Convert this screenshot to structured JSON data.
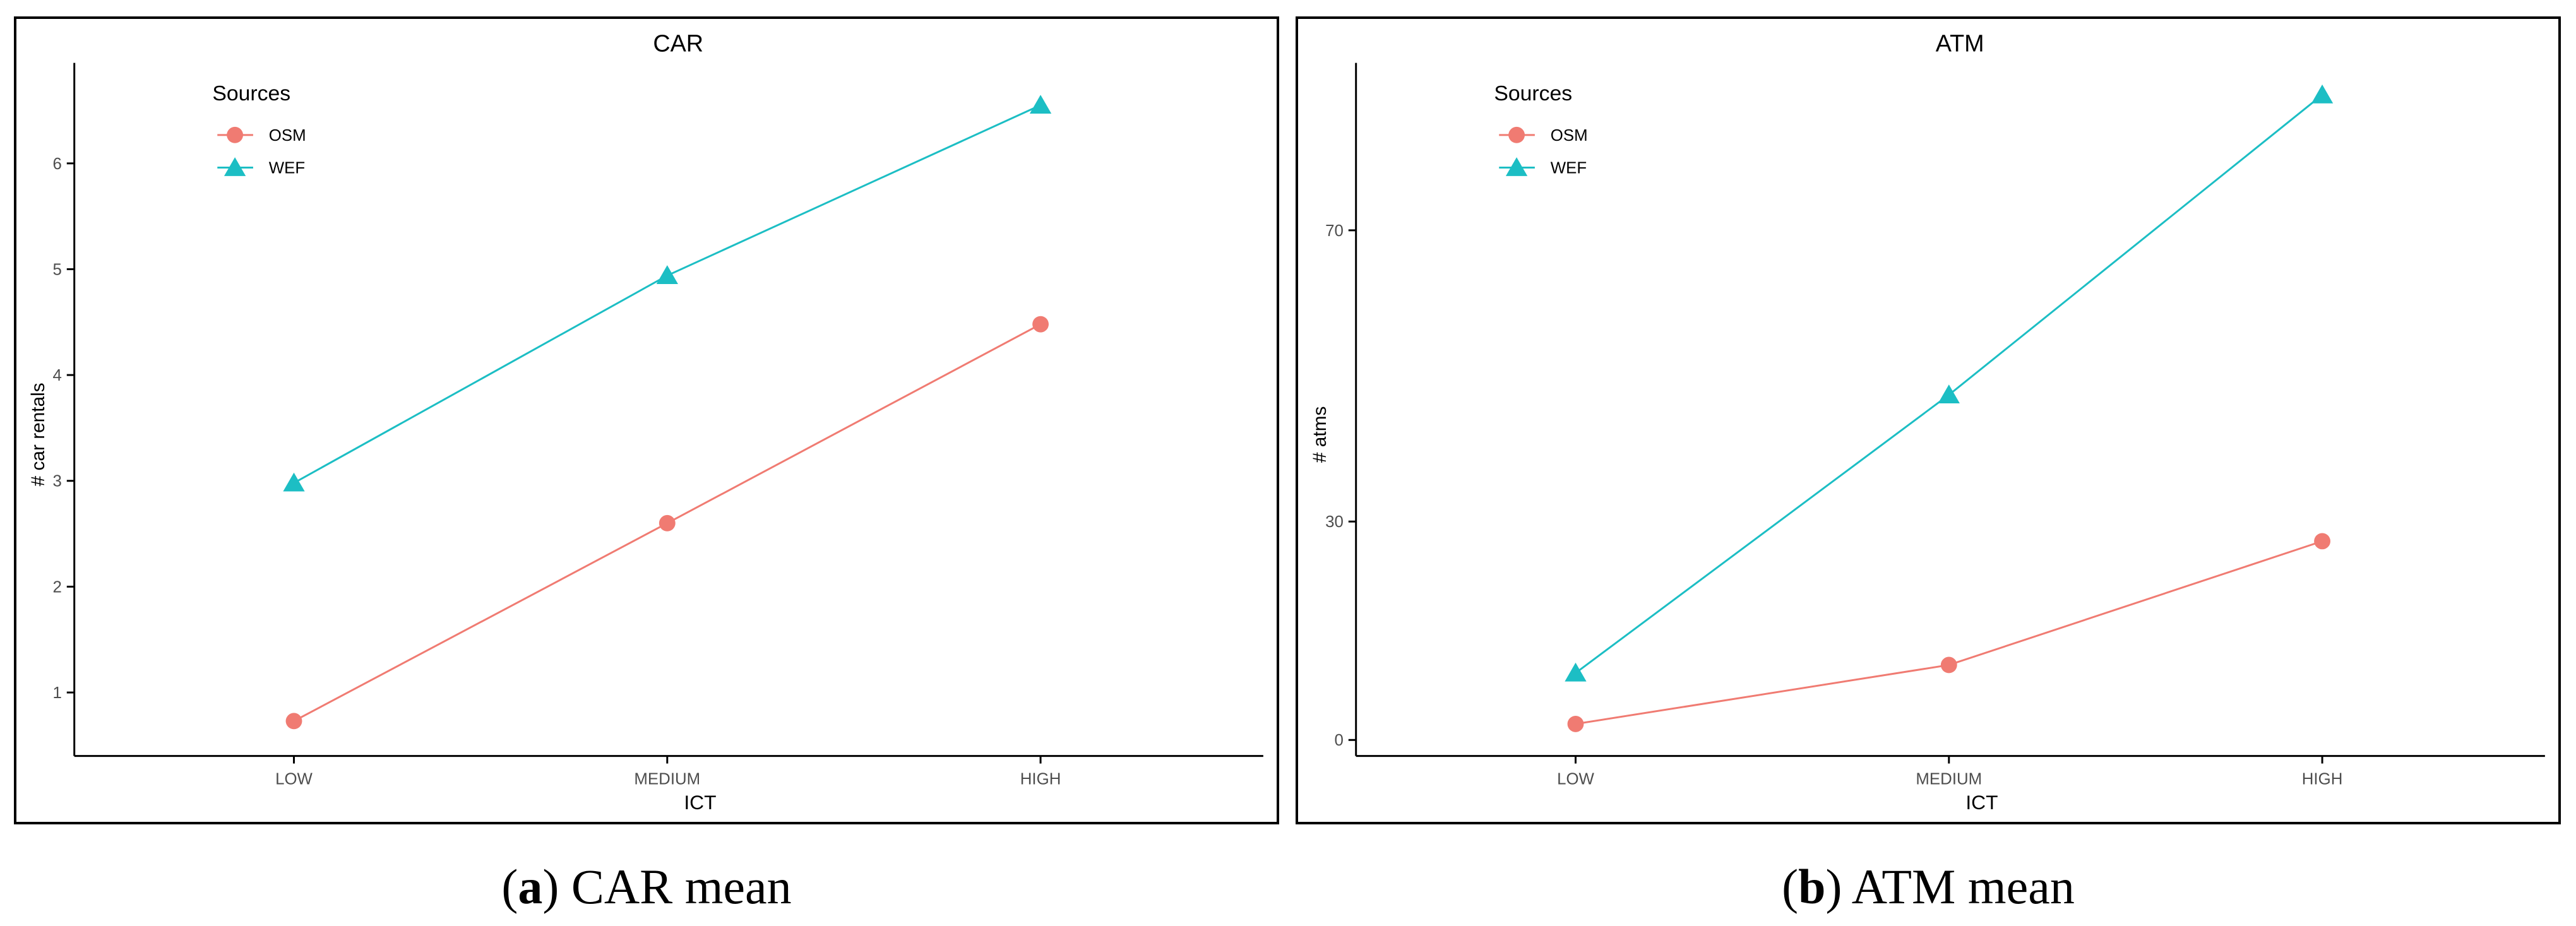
{
  "colors": {
    "osm": "#f07b72",
    "wef": "#1cbec4",
    "axis": "#000000",
    "tick_text": "#4d4d4d"
  },
  "legend": {
    "title": "Sources",
    "placement": "top-left",
    "entries": [
      "OSM",
      "WEF"
    ],
    "icons": [
      "circle-marker-icon",
      "triangle-marker-icon"
    ]
  },
  "chart_data": [
    {
      "type": "line",
      "title": "CAR",
      "xlabel": "ICT",
      "ylabel": "# car rentals",
      "categories": [
        "LOW",
        "MEDIUM",
        "HIGH"
      ],
      "ylim": [
        0.4,
        6.95
      ],
      "yticks": [
        1,
        2,
        3,
        4,
        5,
        6
      ],
      "ytick_labels": [
        "1",
        "2",
        "3",
        "4",
        "5",
        "6"
      ],
      "grid": false,
      "legend": "top-left",
      "series": [
        {
          "name": "OSM",
          "values": [
            0.73,
            2.6,
            4.48
          ]
        },
        {
          "name": "WEF",
          "values": [
            2.98,
            4.94,
            6.55
          ]
        }
      ]
    },
    {
      "type": "line",
      "title": "ATM",
      "xlabel": "ICT",
      "ylabel": "# atms",
      "categories": [
        "LOW",
        "MEDIUM",
        "HIGH"
      ],
      "ylim": [
        -2.2,
        93
      ],
      "yticks": [
        0,
        30,
        70
      ],
      "ytick_labels": [
        "0",
        "30",
        "70"
      ],
      "grid": false,
      "legend": "top-left",
      "series": [
        {
          "name": "OSM",
          "values": [
            2.2,
            10.3,
            27.3
          ]
        },
        {
          "name": "WEF",
          "values": [
            9.2,
            47.4,
            88.6
          ]
        }
      ]
    }
  ],
  "captions": [
    {
      "letter": "a",
      "open": "(",
      "close": ")",
      "text": " CAR mean"
    },
    {
      "letter": "b",
      "open": "(",
      "close": ")",
      "text": " ATM mean"
    }
  ]
}
